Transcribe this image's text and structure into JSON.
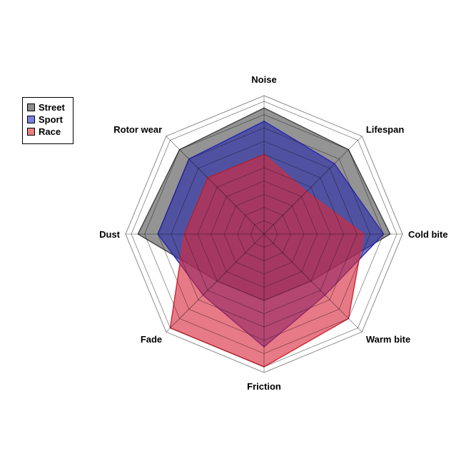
{
  "chart_data": {
    "type": "radar",
    "axes": [
      "Noise",
      "Lifespan",
      "Cold bite",
      "Warm bite",
      "Friction",
      "Fade",
      "Dust",
      "Rotor wear"
    ],
    "max": 10,
    "grid_levels": 10,
    "legend_position": "top-left",
    "series": [
      {
        "name": "Street",
        "color": "#4a4a4a",
        "values": [
          9.5,
          9.0,
          9.5,
          5.0,
          5.0,
          5.0,
          9.5,
          9.0
        ]
      },
      {
        "name": "Sport",
        "color": "#2b2bb0",
        "values": [
          8.5,
          7.5,
          9.0,
          6.5,
          8.5,
          6.5,
          8.0,
          8.0
        ]
      },
      {
        "name": "Race",
        "color": "#d22b3a",
        "values": [
          6.0,
          4.5,
          7.5,
          9.0,
          10.0,
          10.0,
          6.0,
          6.0
        ]
      }
    ]
  }
}
